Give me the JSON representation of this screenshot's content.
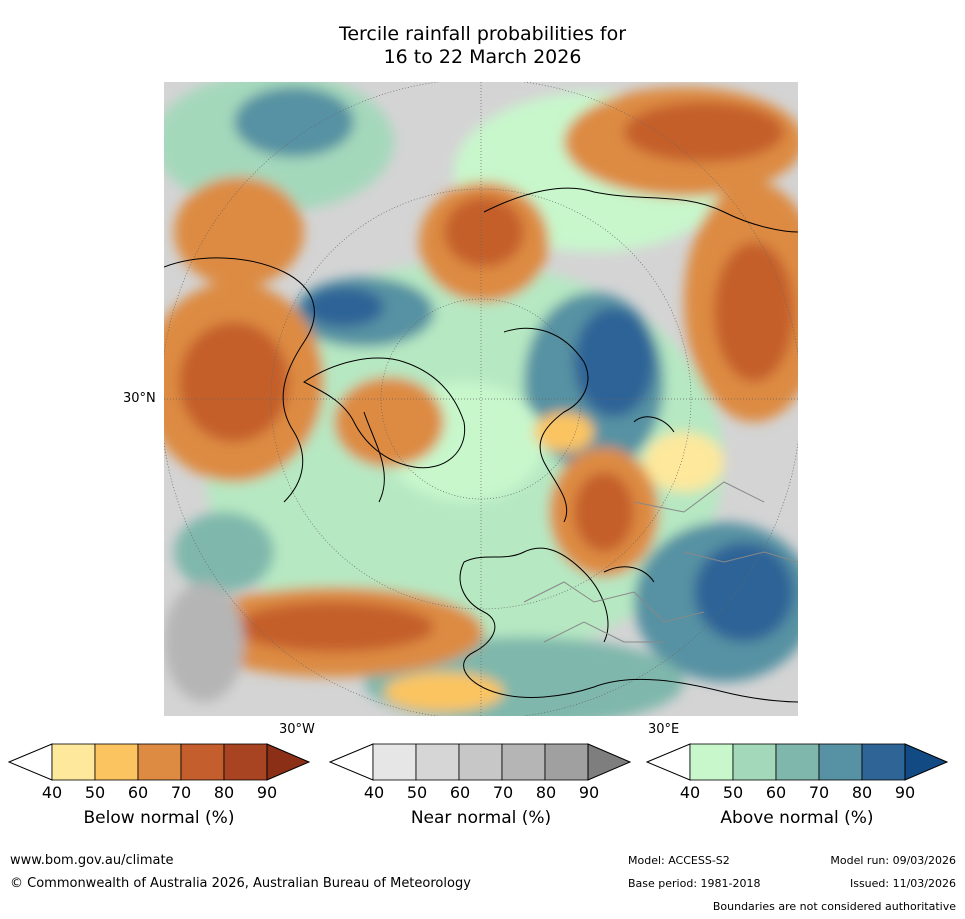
{
  "title": {
    "line1": "Tercile rainfall probabilities for",
    "line2": "16 to 22 March 2026"
  },
  "map": {
    "lat_label": "30°N",
    "lon_label_west": "30°W",
    "lon_label_east": "30°E"
  },
  "colorbars": [
    {
      "label": "Below normal (%)",
      "ticks": [
        "40",
        "50",
        "60",
        "70",
        "80",
        "90"
      ],
      "colors": [
        "#ffffff",
        "#fde89c",
        "#fbc460",
        "#dd8b43",
        "#c45e2c",
        "#a84422",
        "#8c2f17"
      ]
    },
    {
      "label": "Near normal (%)",
      "ticks": [
        "40",
        "50",
        "60",
        "70",
        "80",
        "90"
      ],
      "colors": [
        "#ffffff",
        "#e6e6e6",
        "#d6d6d6",
        "#c7c7c7",
        "#b5b5b5",
        "#a0a0a0",
        "#7e7e7e"
      ]
    },
    {
      "label": "Above normal (%)",
      "ticks": [
        "40",
        "50",
        "60",
        "70",
        "80",
        "90"
      ],
      "colors": [
        "#ffffff",
        "#c8f7cc",
        "#a4d8bb",
        "#7fb7ac",
        "#5692a3",
        "#2f6497",
        "#124a84"
      ]
    }
  ],
  "footer": {
    "website": "www.bom.gov.au/climate",
    "copyright": "© Commonwealth of Australia 2026, Australian Bureau of Meteorology",
    "model": "Model: ACCESS-S2",
    "model_run": "Model run: 09/03/2026",
    "base_period": "Base period: 1981-2018",
    "issued": "Issued: 11/03/2026",
    "disclaimer": "Boundaries are not considered authoritative"
  }
}
